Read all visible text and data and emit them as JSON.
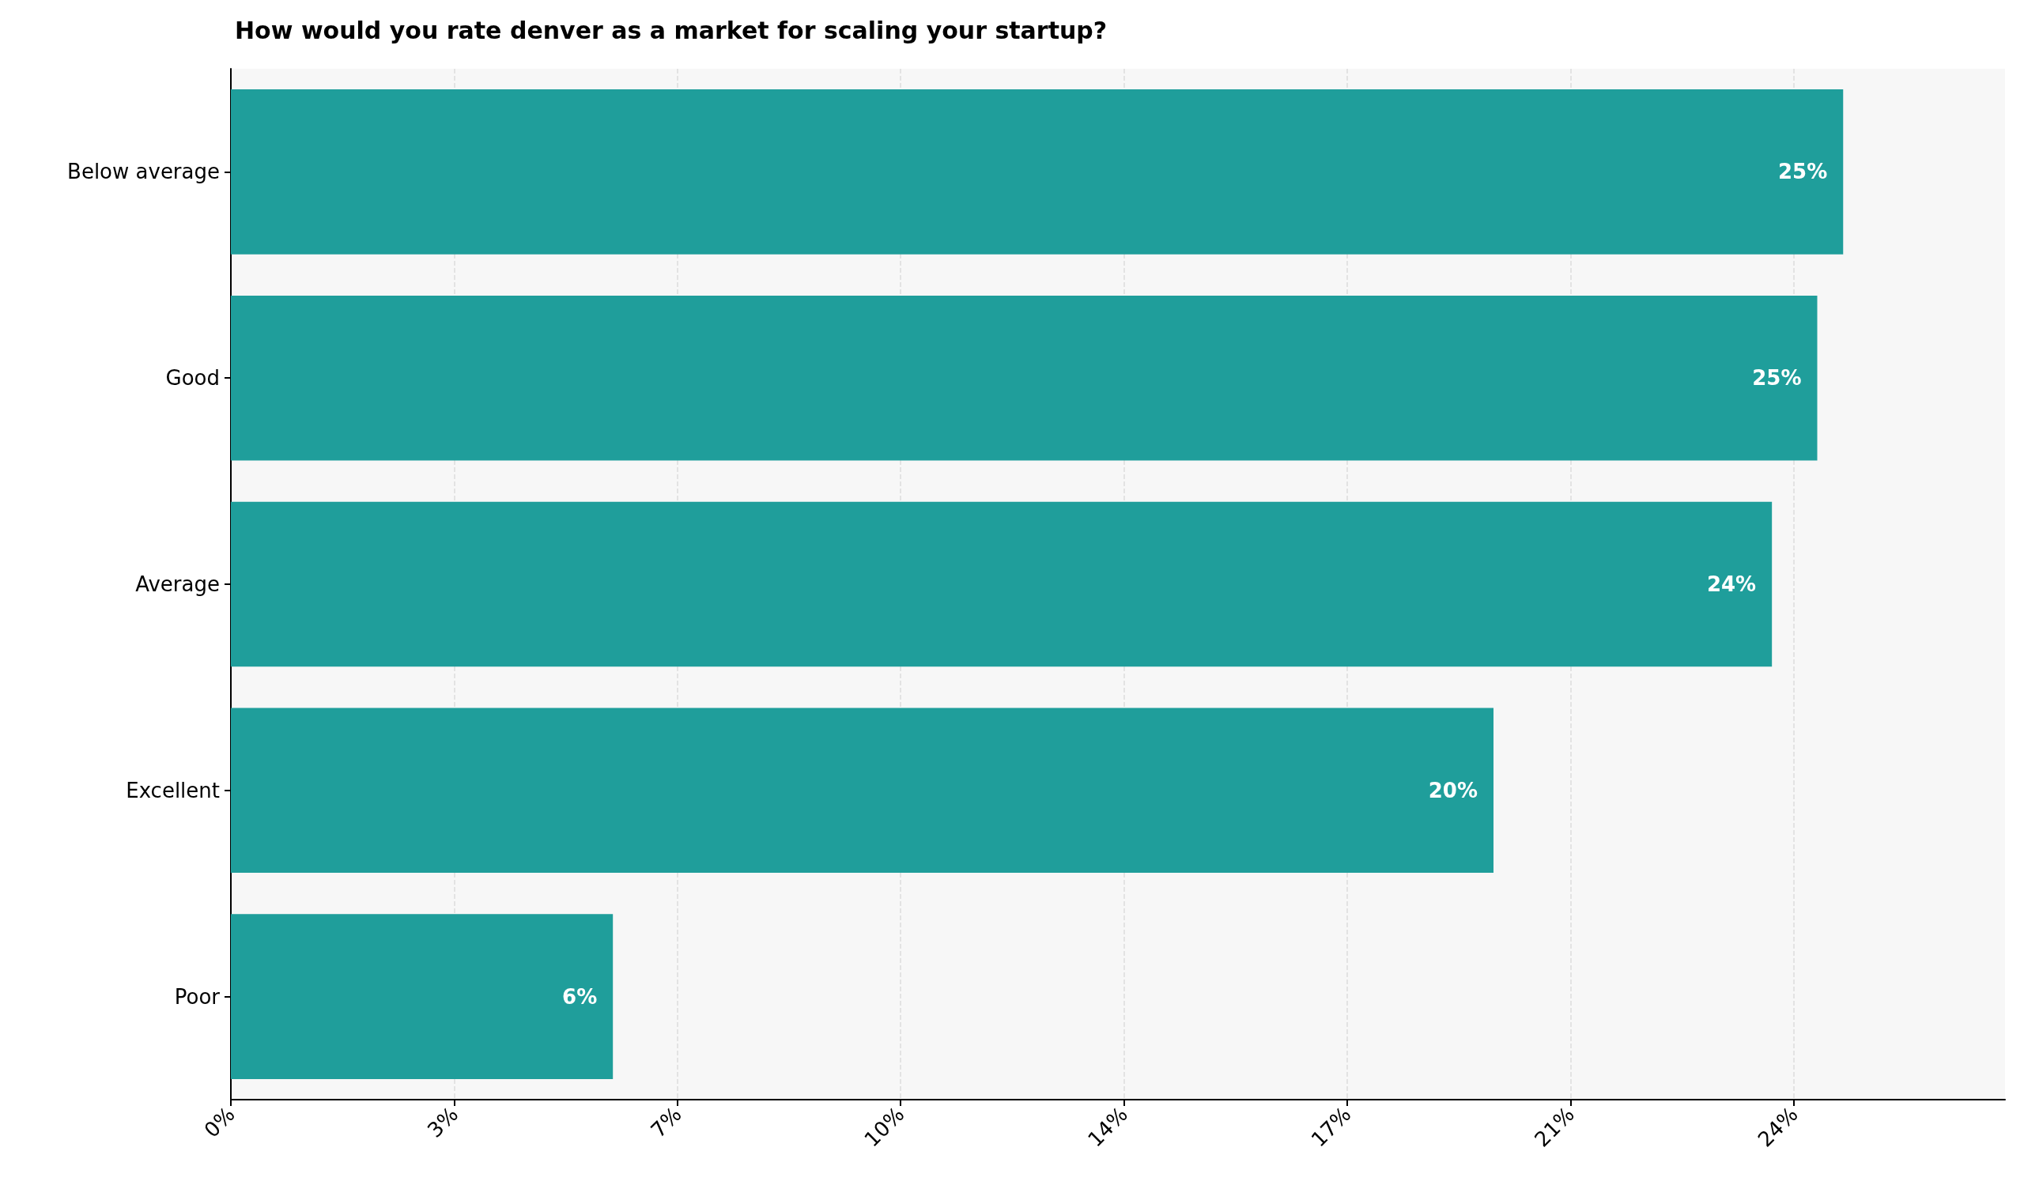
{
  "chart_data": {
    "type": "bar",
    "orientation": "horizontal",
    "title": "How would you rate denver as a market for scaling your startup?",
    "categories": [
      "Below average",
      "Good",
      "Average",
      "Excellent",
      "Poor"
    ],
    "values": [
      24.9,
      24.5,
      23.8,
      19.5,
      5.9
    ],
    "value_labels": [
      "25%",
      "25%",
      "24%",
      "20%",
      "6%"
    ],
    "color": "#1f9e9b",
    "xlim": [
      0,
      27.4
    ],
    "xticks": [
      {
        "value": 0,
        "label": "0%"
      },
      {
        "value": 3.45,
        "label": "3%"
      },
      {
        "value": 6.9,
        "label": "7%"
      },
      {
        "value": 10.34,
        "label": "10%"
      },
      {
        "value": 13.79,
        "label": "14%"
      },
      {
        "value": 17.24,
        "label": "17%"
      },
      {
        "value": 20.69,
        "label": "21%"
      },
      {
        "value": 24.14,
        "label": "24%"
      }
    ],
    "grid": "x"
  }
}
